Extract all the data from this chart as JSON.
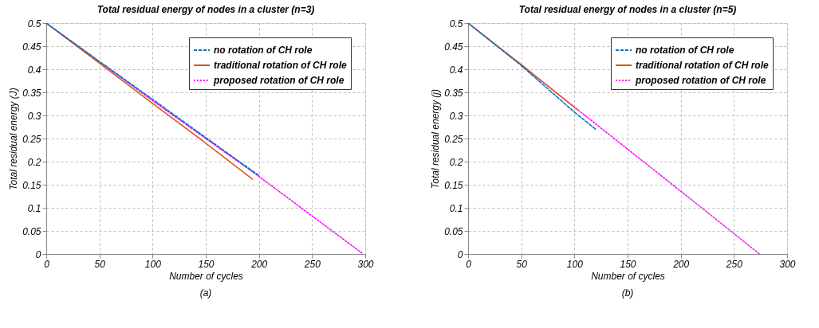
{
  "chart_data": [
    {
      "type": "line",
      "title": "Total residual energy of nodes in a cluster (n=3)",
      "xlabel": "Number of cycles",
      "ylabel": "Total residual energy (J)",
      "annotations": [
        "(a)"
      ],
      "xlim": [
        0,
        300
      ],
      "xticks": [
        0,
        50,
        100,
        150,
        200,
        250,
        300
      ],
      "ylim": [
        0,
        0.5
      ],
      "yticks": [
        0,
        0.05,
        0.1,
        0.15,
        0.2,
        0.25,
        0.3,
        0.35,
        0.4,
        0.45,
        0.5
      ],
      "grid": true,
      "legend": "top right",
      "marker": "none",
      "series": [
        {
          "name": "no rotation of CH role",
          "color": "#0072bd",
          "line_style": "dashed",
          "x": [
            0,
            50,
            100,
            150,
            200
          ],
          "values": [
            0.5,
            0.417,
            0.335,
            0.252,
            0.17
          ]
        },
        {
          "name": "traditional rotation of CH role",
          "color": "#d95319",
          "line_style": "solid",
          "x": [
            0,
            50,
            100,
            150,
            194
          ],
          "values": [
            0.5,
            0.413,
            0.326,
            0.24,
            0.162
          ]
        },
        {
          "name": "proposed rotation of CH role",
          "color": "#ff00ff",
          "line_style": "dotted",
          "x": [
            0,
            100,
            200,
            298
          ],
          "values": [
            0.5,
            0.332,
            0.168,
            0
          ]
        }
      ]
    },
    {
      "type": "line",
      "title": "Total residual energy of nodes in a cluster (n=5)",
      "xlabel": "Number of cycles",
      "ylabel": "Total residual energy (j)",
      "annotations": [
        "(b)"
      ],
      "xlim": [
        0,
        300
      ],
      "xticks": [
        0,
        50,
        100,
        150,
        200,
        250,
        300
      ],
      "ylim": [
        0,
        0.5
      ],
      "yticks": [
        0,
        0.05,
        0.1,
        0.15,
        0.2,
        0.25,
        0.3,
        0.35,
        0.4,
        0.45,
        0.5
      ],
      "grid": true,
      "legend": "top right",
      "marker": "none",
      "series": [
        {
          "name": "no rotation of CH role",
          "color": "#0072bd",
          "line_style": "dashed",
          "x": [
            0,
            50,
            100,
            120
          ],
          "values": [
            0.5,
            0.408,
            0.307,
            0.27
          ]
        },
        {
          "name": "traditional rotation of CH role",
          "color": "#d95319",
          "line_style": "solid",
          "x": [
            0,
            50,
            103
          ],
          "values": [
            0.5,
            0.41,
            0.312
          ]
        },
        {
          "name": "proposed rotation of CH role",
          "color": "#ff00ff",
          "line_style": "dotted",
          "x": [
            0,
            100,
            200,
            274
          ],
          "values": [
            0.5,
            0.318,
            0.136,
            0
          ]
        }
      ]
    }
  ]
}
